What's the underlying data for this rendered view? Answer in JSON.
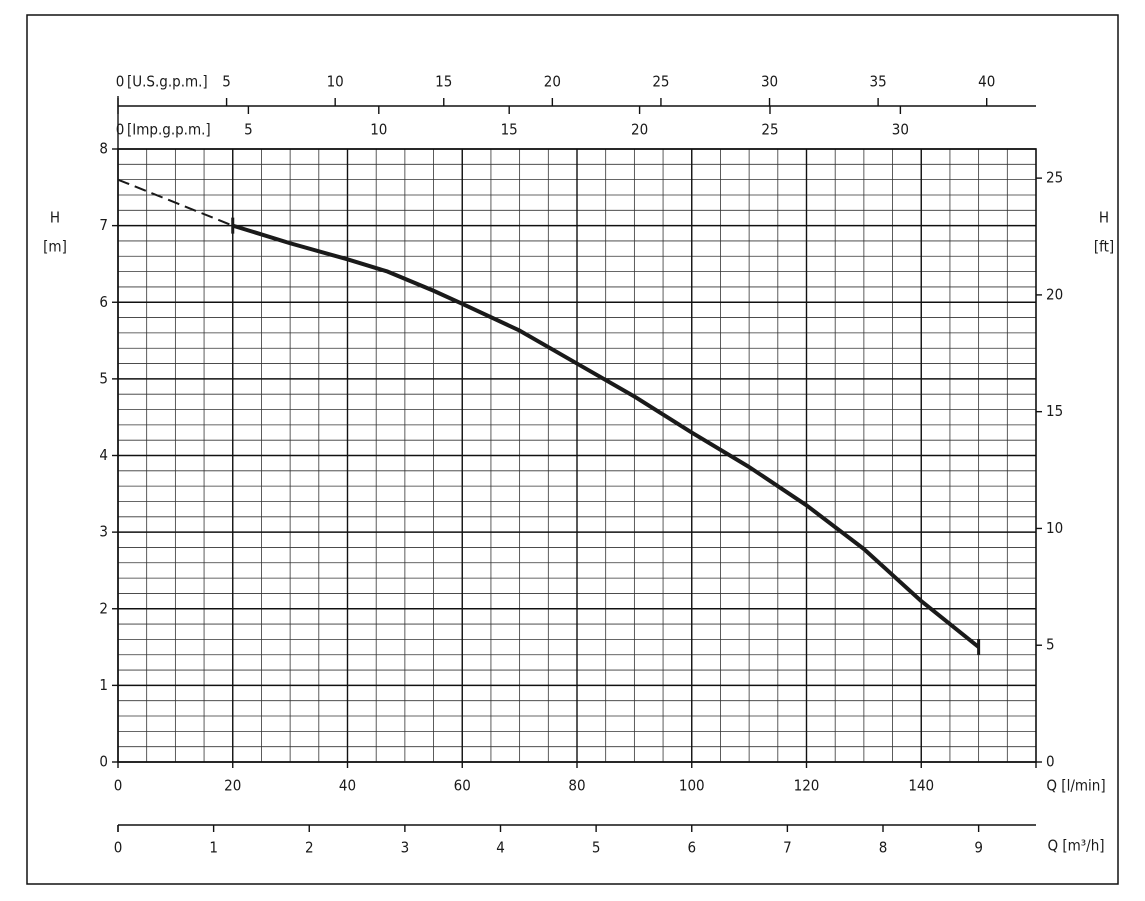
{
  "chart_data": {
    "type": "line",
    "xlabel": "Q [l/min]",
    "ylabel": [
      "H",
      "[m]"
    ],
    "y2label": [
      "H",
      "[ft]"
    ],
    "xlim": [
      0,
      160
    ],
    "xticks": [
      0,
      20,
      40,
      60,
      80,
      100,
      120,
      140
    ],
    "xminor_step": 5,
    "ylim": [
      0,
      8
    ],
    "yticks": [
      0,
      1,
      2,
      3,
      4,
      5,
      6,
      7,
      8
    ],
    "yminor_step": 0.2,
    "y2lim": [
      0,
      26.247
    ],
    "y2ticks": [
      0,
      5,
      10,
      15,
      20,
      25
    ],
    "grid": true,
    "x2": {
      "label": "Q [m³/h]",
      "lim": [
        0,
        9.6
      ],
      "ticks": [
        0,
        1,
        2,
        3,
        4,
        5,
        6,
        7,
        8,
        9
      ]
    },
    "top_axes": [
      {
        "label": "[U.S.g.p.m.]",
        "lim": [
          0,
          42.27
        ],
        "ticks": [
          0,
          5,
          10,
          15,
          20,
          25,
          30,
          35,
          40
        ]
      },
      {
        "label": "[Imp.g.p.m.]",
        "lim": [
          0,
          35.2
        ],
        "ticks": [
          0,
          5,
          10,
          15,
          20,
          25,
          30
        ]
      }
    ],
    "series": [
      {
        "color": "#1a1a1a",
        "dashed": true,
        "x": [
          0,
          20
        ],
        "values": [
          7.6,
          7.0
        ]
      },
      {
        "color": "#1a1a1a",
        "dashed": false,
        "x": [
          20,
          30,
          40,
          47,
          55,
          60,
          70,
          80,
          90,
          100,
          110,
          120,
          130,
          140,
          150
        ],
        "values": [
          7.0,
          6.77,
          6.56,
          6.4,
          6.15,
          5.98,
          5.63,
          5.2,
          4.77,
          4.3,
          3.85,
          3.35,
          2.78,
          2.1,
          1.5
        ]
      }
    ]
  }
}
